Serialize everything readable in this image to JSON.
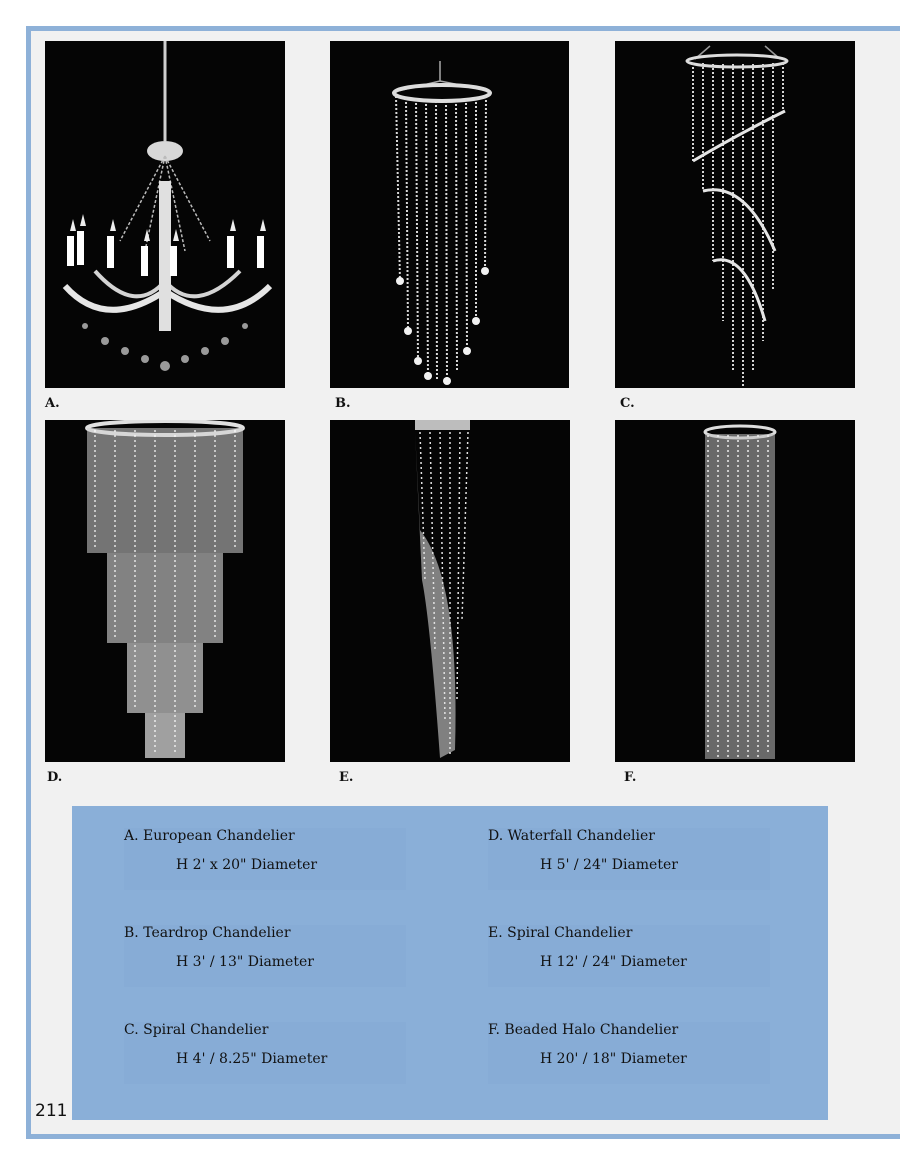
{
  "page_number": "211",
  "items": [
    {
      "letter": "A.",
      "name": "A. European Chandelier",
      "dims": "H 2' x 20\" Diameter"
    },
    {
      "letter": "B.",
      "name": "B. Teardrop Chandelier",
      "dims": "H 3' / 13\" Diameter"
    },
    {
      "letter": "C.",
      "name": "C. Spiral Chandelier",
      "dims": "H 4' / 8.25\" Diameter"
    },
    {
      "letter": "D.",
      "name": "D. Waterfall Chandelier",
      "dims": "H 5' / 24\" Diameter"
    },
    {
      "letter": "E.",
      "name": "E. Spiral Chandelier",
      "dims": "H 12' / 24\" Diameter"
    },
    {
      "letter": "F.",
      "name": "F. Beaded Halo Chandelier",
      "dims": "H 20' / 18\" Diameter"
    }
  ],
  "colors": {
    "frame_border": "#8eb1d8",
    "panel": "#8aafd8",
    "photo_background": "#050505"
  }
}
